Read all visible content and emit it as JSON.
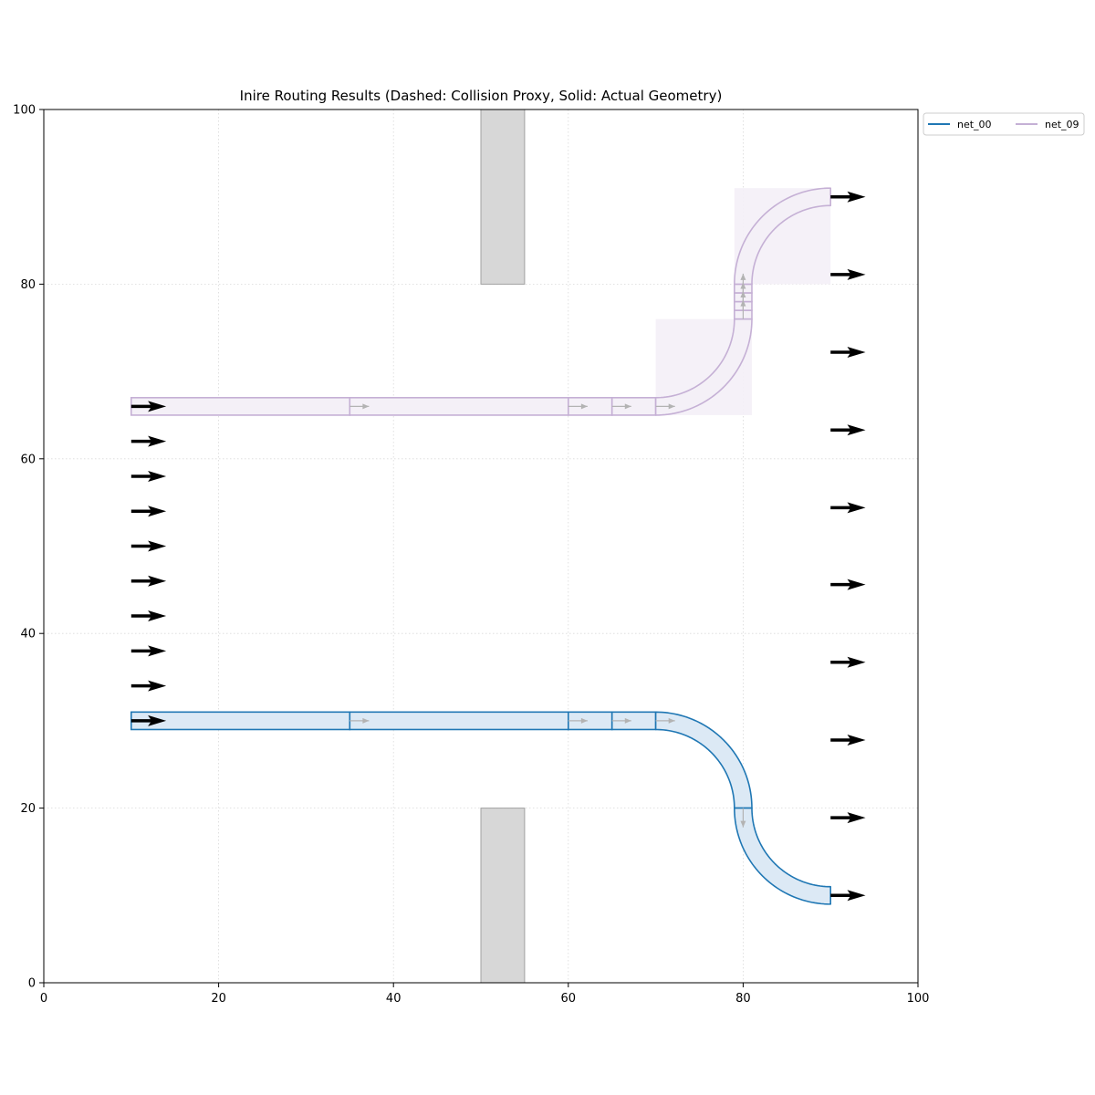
{
  "chart_data": {
    "type": "line",
    "title": "Inire Routing Results (Dashed: Collision Proxy, Solid: Actual Geometry)",
    "xlabel": "",
    "ylabel": "",
    "xlim": [
      0,
      100
    ],
    "ylim": [
      0,
      100
    ],
    "xticks": [
      0,
      20,
      40,
      60,
      80,
      100
    ],
    "yticks": [
      0,
      20,
      40,
      60,
      80,
      100
    ],
    "grid": true,
    "legend_position": "outside-top-right",
    "obstacles": [
      {
        "x0": 50,
        "x1": 55,
        "y0": 80,
        "y1": 100
      },
      {
        "x0": 50,
        "x1": 55,
        "y0": 0,
        "y1": 20
      }
    ],
    "series": [
      {
        "name": "net_00",
        "color": "#1f77b4",
        "fill": "#dce9f5",
        "width": 2,
        "straights": [
          {
            "x0": 10,
            "x1": 35,
            "y": 30
          },
          {
            "x0": 35,
            "x1": 60,
            "y": 30
          },
          {
            "x0": 60,
            "x1": 65,
            "y": 30
          },
          {
            "x0": 65,
            "x1": 70,
            "y": 30
          }
        ],
        "bends": [
          {
            "cx": 70,
            "cy": 20,
            "r": 10,
            "a0": 90,
            "a1": 0
          },
          {
            "cx": 90,
            "cy": 20,
            "r": 10,
            "a0": 180,
            "a1": 270
          }
        ],
        "flow_arrows": [
          {
            "x": 35,
            "y": 30,
            "dir": "right"
          },
          {
            "x": 60,
            "y": 30,
            "dir": "right"
          },
          {
            "x": 65,
            "y": 30,
            "dir": "right"
          },
          {
            "x": 70,
            "y": 30,
            "dir": "right"
          },
          {
            "x": 80,
            "y": 20,
            "dir": "down"
          }
        ],
        "proxy_boxes": []
      },
      {
        "name": "net_09",
        "color": "#c5b0d5",
        "fill": "#f4f0f7",
        "width": 2,
        "straights": [
          {
            "x0": 10,
            "x1": 35,
            "y": 66
          },
          {
            "x0": 35,
            "x1": 60,
            "y": 66
          },
          {
            "x0": 60,
            "x1": 65,
            "y": 66
          },
          {
            "x0": 65,
            "x1": 70,
            "y": 66
          }
        ],
        "bends": [
          {
            "cx": 70,
            "cy": 76,
            "r": 10,
            "a0": 270,
            "a1": 360
          },
          {
            "cx": 90,
            "cy": 80,
            "r": 10,
            "a0": 180,
            "a1": 90
          }
        ],
        "vertical_straights": [
          {
            "x": 80,
            "y0": 76,
            "y1": 77
          },
          {
            "x": 80,
            "y0": 77,
            "y1": 78
          },
          {
            "x": 80,
            "y0": 78,
            "y1": 79
          },
          {
            "x": 80,
            "y0": 79,
            "y1": 80
          }
        ],
        "flow_arrows": [
          {
            "x": 35,
            "y": 66,
            "dir": "right"
          },
          {
            "x": 60,
            "y": 66,
            "dir": "right"
          },
          {
            "x": 65,
            "y": 66,
            "dir": "right"
          },
          {
            "x": 70,
            "y": 66,
            "dir": "right"
          },
          {
            "x": 80,
            "y": 76,
            "dir": "up"
          },
          {
            "x": 80,
            "y": 77,
            "dir": "up"
          },
          {
            "x": 80,
            "y": 78,
            "dir": "up"
          },
          {
            "x": 80,
            "y": 79,
            "dir": "up"
          }
        ],
        "proxy_boxes": [
          {
            "x0": 70,
            "x1": 81,
            "y0": 65,
            "y1": 76
          },
          {
            "x0": 79,
            "x1": 90,
            "y0": 80,
            "y1": 91
          }
        ]
      }
    ],
    "source_ports": [
      30,
      34,
      38,
      42,
      46,
      50,
      54,
      58,
      62,
      66
    ],
    "target_ports": [
      10,
      18.9,
      27.8,
      36.7,
      45.6,
      54.4,
      63.3,
      72.2,
      81.1,
      90
    ],
    "source_x": 10,
    "target_x": 90,
    "path_width": 2
  }
}
